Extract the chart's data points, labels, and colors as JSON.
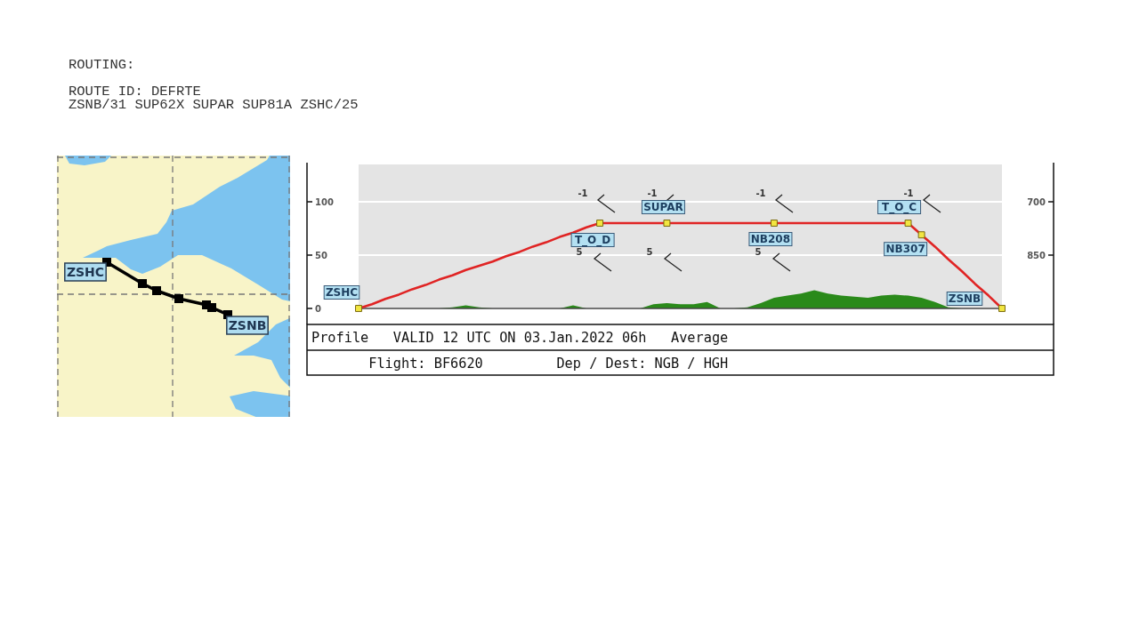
{
  "chart_data": [
    {
      "type": "other",
      "title": "ROUTING:",
      "annotations": [
        "ROUTE ID: DEFRTE",
        "ZSNB/31 SUP62X SUPAR SUP81A ZSHC/25"
      ]
    },
    {
      "type": "other",
      "annotations": [
        "ZSHC",
        "ZSNB"
      ]
    },
    {
      "type": "line",
      "categories": [
        null,
        null,
        null,
        null,
        null,
        null,
        null,
        null,
        null,
        null,
        null,
        null,
        null,
        null,
        null,
        null,
        null,
        null,
        null,
        null,
        null,
        null,
        null,
        null,
        null,
        null,
        null,
        null,
        null,
        null,
        null,
        null,
        null,
        null,
        null,
        null,
        null,
        null,
        null,
        null,
        null,
        null,
        null,
        null,
        null,
        null,
        null,
        null,
        null
      ],
      "series": [
        {
          "type": "area",
          "color": "#2a8a1a",
          "values": [
            0,
            0,
            0,
            0,
            0,
            0,
            0,
            1,
            3,
            1,
            0,
            0,
            0,
            0,
            0,
            0,
            3,
            0,
            0,
            0,
            0,
            0,
            4,
            5,
            4,
            4,
            6,
            0,
            0,
            1,
            5,
            10,
            12,
            14,
            17,
            14,
            12,
            11,
            10,
            12,
            13,
            12,
            10,
            6,
            1,
            0,
            0,
            0,
            0
          ]
        },
        {
          "type": "line",
          "color": "#e02424",
          "values": [
            0,
            4,
            9,
            13,
            18,
            22,
            27,
            31,
            36,
            40,
            44,
            49,
            53,
            58,
            62,
            67,
            71,
            76,
            80,
            80,
            80,
            80,
            80,
            80,
            80,
            80,
            80,
            80,
            80,
            80,
            80,
            80,
            80,
            80,
            80,
            80,
            80,
            80,
            80,
            80,
            80,
            80,
            69,
            58,
            46,
            35,
            23,
            12,
            0
          ]
        },
        {
          "type": "scatter",
          "color": "#f2e641",
          "marker": "square",
          "values": [
            0,
            null,
            null,
            null,
            null,
            null,
            null,
            null,
            null,
            null,
            null,
            null,
            null,
            null,
            null,
            null,
            null,
            null,
            80,
            null,
            null,
            null,
            null,
            80,
            null,
            null,
            null,
            null,
            null,
            null,
            null,
            80,
            null,
            null,
            null,
            null,
            null,
            null,
            null,
            null,
            null,
            80,
            69,
            null,
            null,
            null,
            null,
            null,
            0
          ]
        }
      ],
      "ylim": [
        0,
        135
      ],
      "yticks": [
        0,
        50,
        100
      ],
      "y2lim": [
        1000,
        595
      ],
      "y2ticks": [
        700,
        850
      ],
      "grid": "y",
      "annotations": [
        "ZSHC",
        "T_O_D",
        "SUPAR",
        "NB208",
        "T_O_C",
        "NB307",
        "ZSNB",
        "-1",
        "-1",
        "-1",
        "-1",
        "5",
        "5",
        "5",
        "Profile   VALID 12 UTC ON 03.Jan.2022 06h   Average",
        "Flight: BF6620         Dep / Dest: NGB / HGH"
      ]
    }
  ]
}
